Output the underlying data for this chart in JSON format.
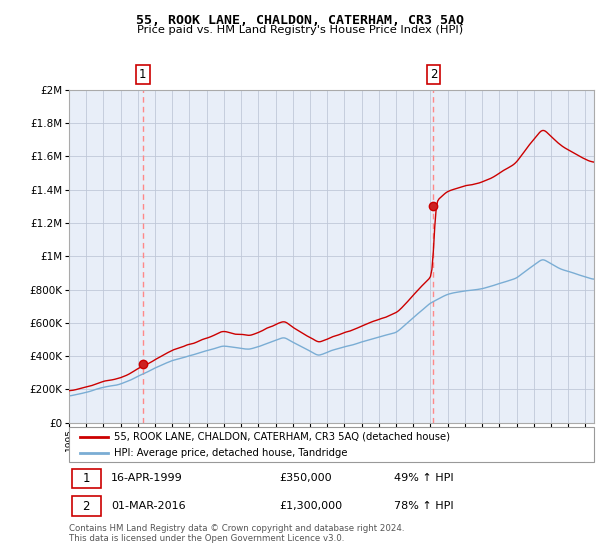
{
  "title": "55, ROOK LANE, CHALDON, CATERHAM, CR3 5AQ",
  "subtitle": "Price paid vs. HM Land Registry's House Price Index (HPI)",
  "legend_line1": "55, ROOK LANE, CHALDON, CATERHAM, CR3 5AQ (detached house)",
  "legend_line2": "HPI: Average price, detached house, Tandridge",
  "annotation1_date": "16-APR-1999",
  "annotation1_price": "£350,000",
  "annotation1_hpi": "49% ↑ HPI",
  "annotation2_date": "01-MAR-2016",
  "annotation2_price": "£1,300,000",
  "annotation2_hpi": "78% ↑ HPI",
  "footer": "Contains HM Land Registry data © Crown copyright and database right 2024.\nThis data is licensed under the Open Government Licence v3.0.",
  "sale1_year": 1999.29,
  "sale1_value": 350000,
  "sale2_year": 2016.17,
  "sale2_value": 1300000,
  "hpi_color": "#7aadd4",
  "price_color": "#cc0000",
  "vline_color": "#ff8888",
  "chart_bg": "#e8eef8",
  "background_color": "#ffffff",
  "grid_color": "#c0c8d8",
  "ylim": [
    0,
    2000000
  ],
  "xlim_start": 1995.0,
  "xlim_end": 2025.5
}
